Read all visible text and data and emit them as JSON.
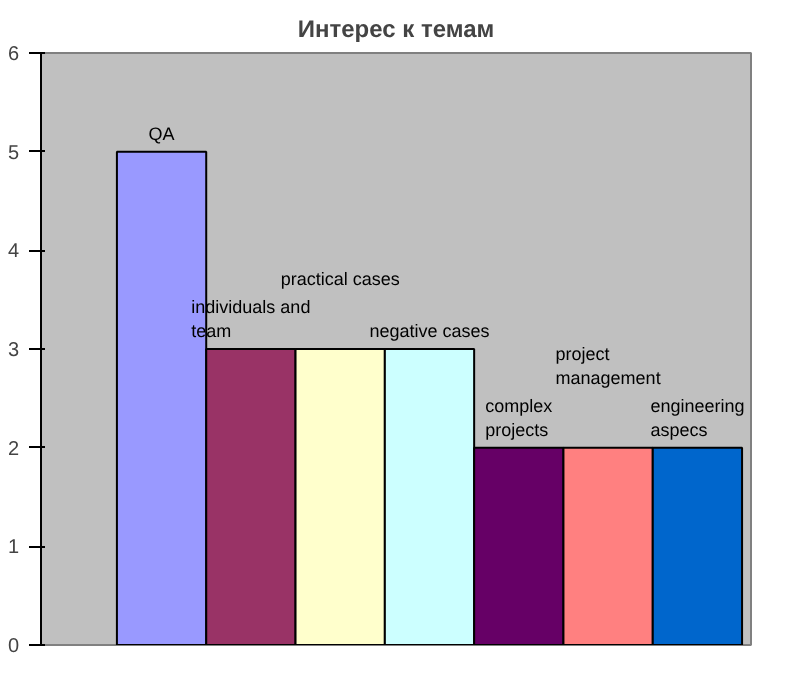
{
  "chart_data": {
    "type": "bar",
    "title": "Интерес к темам",
    "categories": [
      "QA",
      "individuals and team",
      "practical cases",
      "negative cases",
      "complex projects",
      "project management",
      "engineering aspecs"
    ],
    "values": [
      5,
      3,
      3,
      3,
      2,
      2,
      2
    ],
    "colors": [
      "#9999ff",
      "#993366",
      "#ffffcc",
      "#ccffff",
      "#660066",
      "#ff8080",
      "#0066cc"
    ],
    "ylim": [
      0,
      6
    ],
    "yticks": [
      0,
      1,
      2,
      3,
      4,
      5,
      6
    ],
    "grid": false
  }
}
